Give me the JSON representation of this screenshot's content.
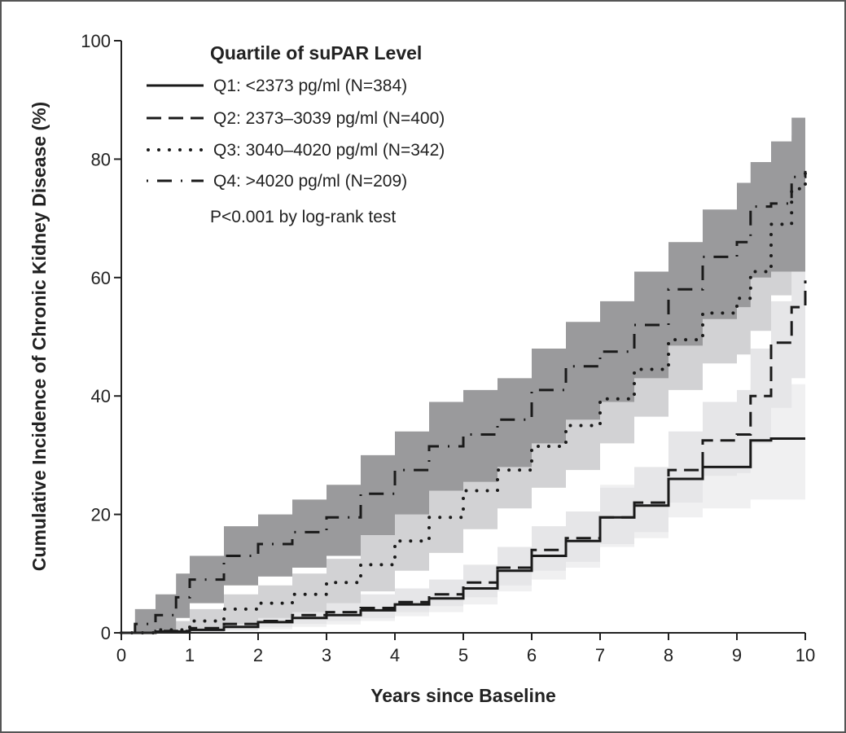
{
  "chart_data": {
    "type": "line",
    "xlabel": "Years since Baseline",
    "ylabel": "Cumulative Incidence of Chronic Kidney Disease (%)",
    "xlim": [
      0,
      10
    ],
    "ylim": [
      0,
      100
    ],
    "xticks": [
      0,
      1,
      2,
      3,
      4,
      5,
      6,
      7,
      8,
      9,
      10
    ],
    "yticks": [
      0,
      20,
      40,
      60,
      80,
      100
    ],
    "grid": false,
    "legend_title": "Quartile of suPAR Level",
    "legend_position": "top-left",
    "annotation": "P<0.001 by log-rank test",
    "colors": {
      "line": "#1a1a1a",
      "band_q4": "#9a9a9c",
      "band_q3": "#d2d2d4",
      "band_q2": "#e6e6e8",
      "band_q1": "#f0f0f1"
    },
    "series": [
      {
        "name": "Q1: <2373 pg/ml (N=384)",
        "style": "solid",
        "x": [
          0,
          0.5,
          1,
          1.5,
          2,
          2.5,
          3,
          3.5,
          4,
          4.5,
          5,
          5.5,
          6,
          6.5,
          7,
          7.5,
          8,
          8.5,
          9,
          9.2,
          9.5,
          10
        ],
        "y": [
          0,
          0.2,
          0.5,
          1,
          1.8,
          2.5,
          3,
          3.8,
          4.8,
          5.8,
          7.5,
          10.5,
          13,
          15.5,
          19.5,
          21.5,
          26,
          28,
          28,
          32.5,
          32.8,
          32.8
        ],
        "band_lower": [
          0,
          0,
          0,
          0.3,
          0.6,
          1,
          1.4,
          2,
          2.8,
          3.5,
          4.8,
          7,
          9,
          11,
          14.5,
          16,
          19.5,
          21,
          21,
          22.5,
          22.5,
          22.5
        ],
        "band_upper": [
          0,
          0.8,
          1.5,
          2.5,
          3.5,
          4.5,
          5.5,
          6.5,
          7.5,
          9,
          11,
          14.5,
          17,
          20,
          25,
          27,
          32.5,
          35,
          35,
          42,
          42,
          42
        ]
      },
      {
        "name": "Q2: 2373–3039 pg/ml (N=400)",
        "style": "dashed",
        "x": [
          0,
          0.5,
          1,
          1.5,
          2,
          2.5,
          3,
          3.5,
          4,
          4.5,
          5,
          5.5,
          6,
          6.5,
          7,
          7.5,
          8,
          8.5,
          9,
          9.2,
          9.5,
          9.8,
          10
        ],
        "y": [
          0,
          0.3,
          0.8,
          1.5,
          2,
          3,
          3.5,
          4.2,
          5.2,
          6.5,
          8.5,
          11,
          14,
          16,
          19.5,
          22,
          27.5,
          32.5,
          33.5,
          40,
          49,
          55,
          59.5
        ],
        "band_lower": [
          0,
          0,
          0.2,
          0.5,
          1,
          1.5,
          2,
          2.5,
          3.5,
          4.5,
          6,
          8,
          10.5,
          12,
          15,
          17,
          22,
          26.5,
          27,
          32,
          38,
          43,
          47
        ],
        "band_upper": [
          0,
          1,
          2,
          3,
          4,
          5,
          5.8,
          6.5,
          7.5,
          9,
          11.5,
          14.5,
          18,
          20.5,
          24.5,
          28,
          34,
          39,
          41,
          48,
          56,
          62,
          66
        ]
      },
      {
        "name": "Q3: 3040–4020 pg/ml (N=342)",
        "style": "dotted",
        "x": [
          0,
          0.5,
          1,
          1.5,
          2,
          2.5,
          3,
          3.5,
          4,
          4.5,
          5,
          5.5,
          6,
          6.5,
          7,
          7.5,
          8,
          8.5,
          9,
          9.2,
          9.5,
          9.8,
          10
        ],
        "y": [
          0,
          0.5,
          2,
          4,
          5,
          6.5,
          8.5,
          11.5,
          15.5,
          19.5,
          24,
          27.5,
          31.5,
          35,
          39.5,
          44.5,
          49.5,
          54,
          56.5,
          61,
          69,
          75,
          78
        ],
        "band_lower": [
          0,
          0,
          0.5,
          1.5,
          2.5,
          3.5,
          5,
          7,
          10.5,
          13.5,
          17.5,
          21,
          24.5,
          27.5,
          32,
          36.5,
          41,
          45.5,
          47,
          51,
          57,
          61,
          62
        ],
        "band_upper": [
          0,
          2,
          4,
          6.5,
          8,
          10,
          12.5,
          16.5,
          20.5,
          25.5,
          30.5,
          34.5,
          38.5,
          42.5,
          47,
          52.5,
          58.5,
          63,
          65,
          70,
          78,
          84,
          86
        ]
      },
      {
        "name": "Q4: >4020 pg/ml (N=209)",
        "style": "dash-dot",
        "x": [
          0,
          0.2,
          0.5,
          0.8,
          1,
          1.5,
          2,
          2.5,
          3,
          3.5,
          4,
          4.5,
          5,
          5.5,
          6,
          6.5,
          7,
          7.5,
          8,
          8.5,
          9,
          9.2,
          9.5,
          9.8,
          10
        ],
        "y": [
          0,
          1.5,
          3,
          6,
          9,
          13,
          15,
          17,
          19.5,
          23.5,
          27.5,
          31.5,
          33.5,
          36,
          41,
          45,
          47.5,
          52,
          58,
          63.5,
          66,
          72,
          72.5,
          77,
          78
        ],
        "band_lower": [
          0,
          0,
          0.5,
          2.5,
          5,
          8,
          9.5,
          11,
          13,
          16.5,
          20,
          24,
          25.5,
          28,
          32,
          36,
          39,
          43,
          48.5,
          53,
          55,
          60,
          61,
          61,
          61
        ],
        "band_upper": [
          0,
          4,
          6.5,
          10,
          13,
          18,
          20,
          22.5,
          25,
          30,
          34,
          39,
          41,
          43,
          48,
          52.5,
          56,
          61,
          66,
          71.5,
          76,
          79.5,
          83,
          87,
          87
        ]
      }
    ]
  }
}
